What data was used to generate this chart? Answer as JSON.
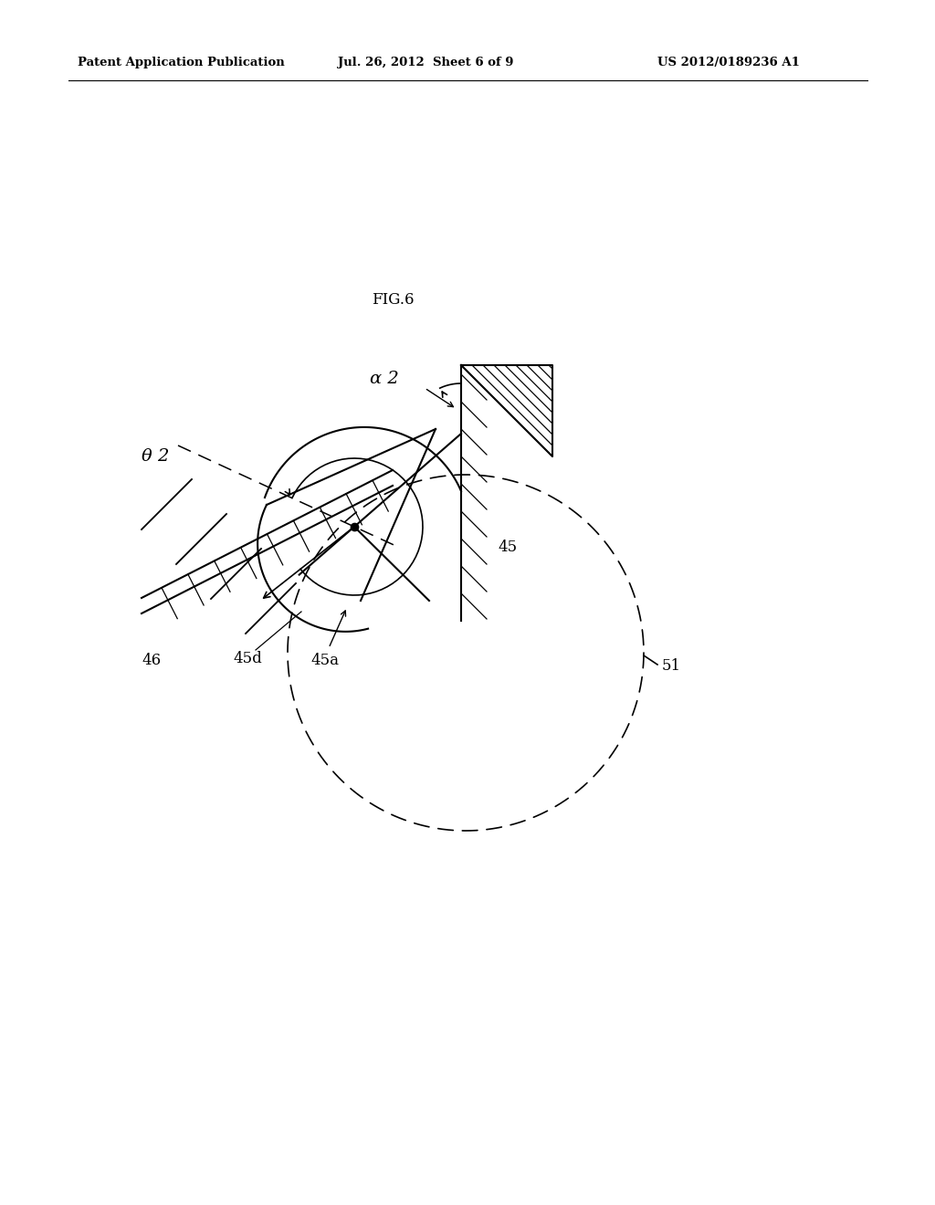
{
  "title": "FIG.6",
  "header_left": "Patent Application Publication",
  "header_mid": "Jul. 26, 2012  Sheet 6 of 9",
  "header_right": "US 2012/0189236 A1",
  "bg_color": "#ffffff",
  "line_color": "#000000",
  "label_45": "45",
  "label_45a": "45a",
  "label_45d": "45d",
  "label_46": "46",
  "label_51": "51",
  "label_alpha2": "α 2",
  "label_theta2": "θ 2",
  "fig_label": "FIG.6"
}
